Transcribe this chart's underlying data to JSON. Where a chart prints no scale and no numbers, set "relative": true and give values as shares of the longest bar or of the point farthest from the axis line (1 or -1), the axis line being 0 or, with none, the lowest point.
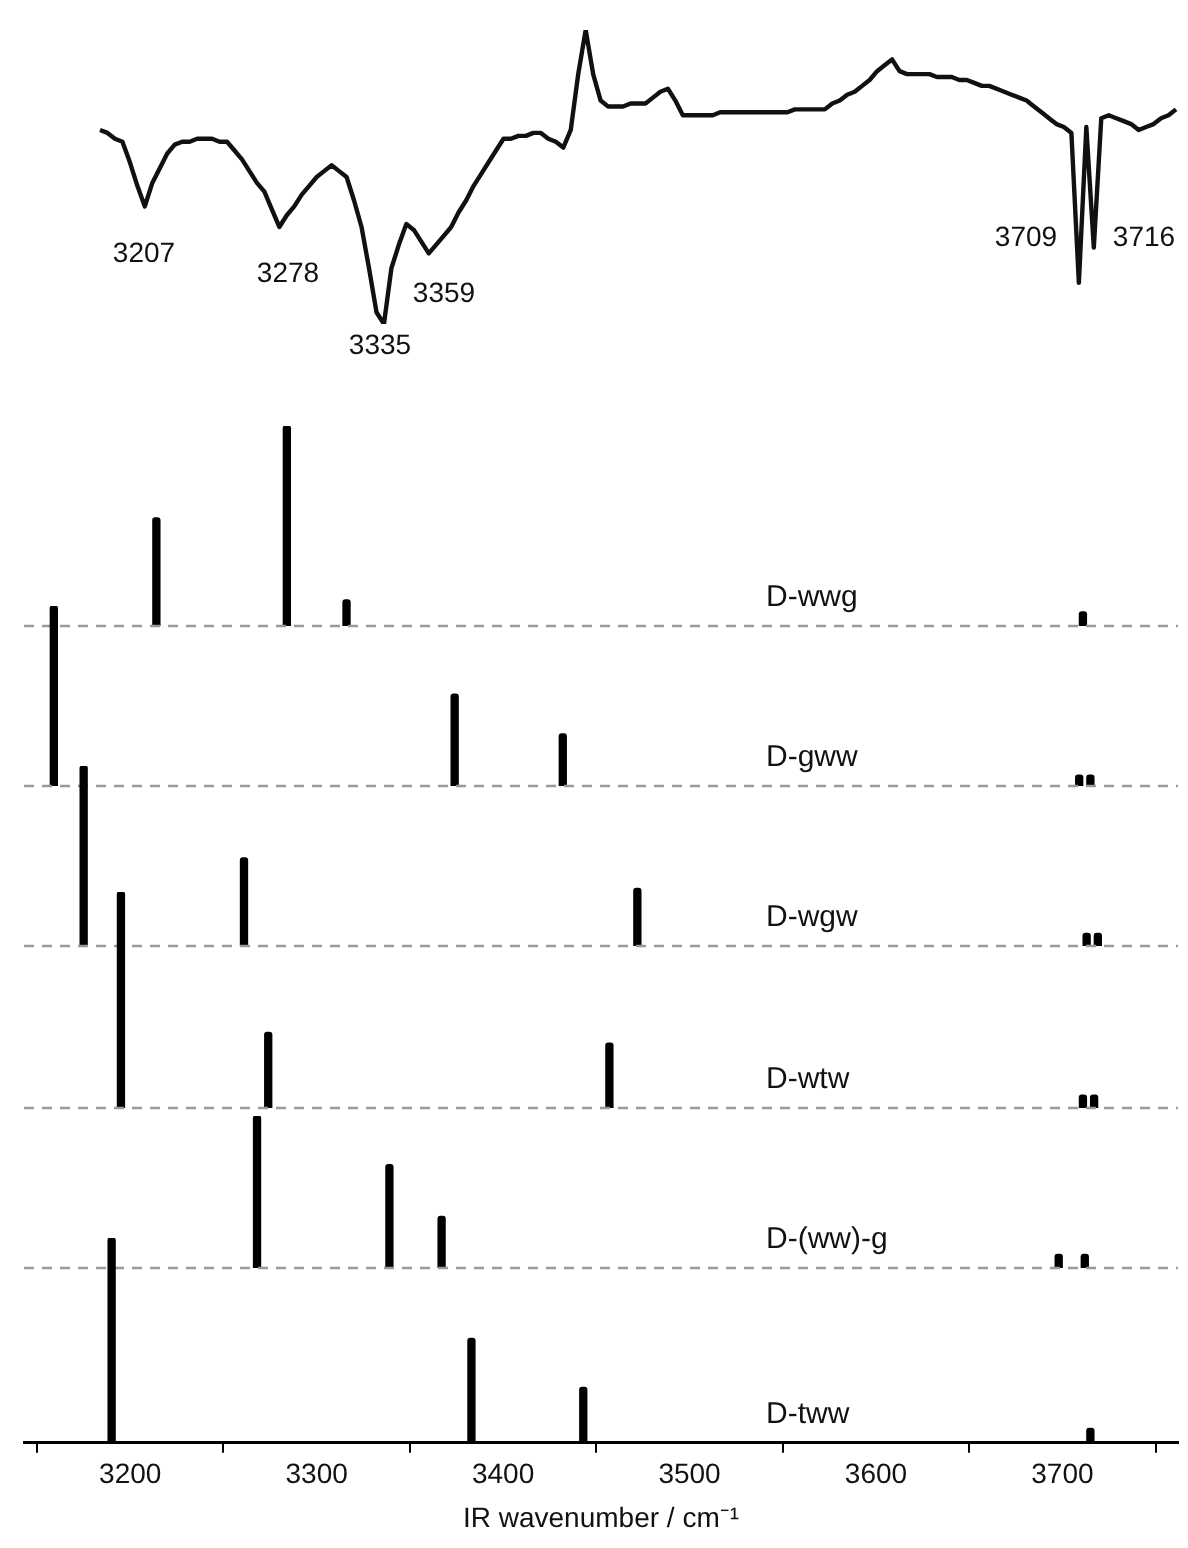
{
  "chart_data": [
    {
      "type": "line",
      "relative": true,
      "color": "#111111",
      "tick_labels": false,
      "categories": [
        null,
        null,
        null,
        null,
        null,
        null,
        null,
        null,
        null,
        null,
        null,
        null,
        null,
        null,
        null,
        null,
        null,
        null,
        null,
        null,
        null,
        null,
        null,
        null,
        null,
        null,
        null,
        null,
        null,
        null,
        null,
        null,
        null,
        null,
        null,
        null,
        null,
        null,
        null,
        null,
        null,
        null,
        null,
        null,
        null,
        null,
        null,
        null,
        null,
        null,
        null,
        null,
        null,
        null,
        null,
        null,
        null,
        null,
        null,
        null,
        null,
        null,
        null,
        null,
        null,
        null,
        null,
        null,
        null,
        null,
        null,
        null,
        null,
        null,
        null,
        null,
        null,
        null,
        null,
        null,
        null,
        null,
        null,
        null,
        null,
        null,
        null,
        null,
        null,
        null,
        null,
        null,
        null,
        null,
        null,
        null,
        null,
        null,
        null,
        null,
        null,
        null,
        null,
        null,
        null,
        null,
        null,
        null,
        null,
        null,
        null,
        null,
        null,
        null,
        null,
        null,
        null,
        null,
        null,
        null,
        null,
        null,
        null,
        null,
        null,
        null,
        null,
        null,
        null,
        null,
        null,
        null,
        null,
        null,
        null,
        null,
        null,
        null,
        null,
        null,
        null,
        null,
        null,
        null,
        null
      ],
      "values": [
        0.66,
        0.65,
        0.63,
        0.62,
        0.55,
        0.47,
        0.4,
        0.48,
        0.53,
        0.58,
        0.61,
        0.62,
        0.62,
        0.63,
        0.63,
        0.63,
        0.62,
        0.62,
        0.59,
        0.56,
        0.52,
        0.48,
        0.45,
        0.39,
        0.33,
        0.37,
        0.4,
        0.44,
        0.47,
        0.5,
        0.52,
        0.54,
        0.52,
        0.5,
        0.42,
        0.33,
        0.19,
        0.04,
        0,
        0.19,
        0.27,
        0.34,
        0.32,
        0.28,
        0.24,
        0.27,
        0.3,
        0.33,
        0.38,
        0.42,
        0.47,
        0.51,
        0.55,
        0.59,
        0.63,
        0.63,
        0.64,
        0.64,
        0.65,
        0.65,
        0.63,
        0.62,
        0.6,
        0.66,
        0.85,
        1,
        0.85,
        0.76,
        0.74,
        0.74,
        0.74,
        0.75,
        0.75,
        0.75,
        0.77,
        0.79,
        0.8,
        0.76,
        0.71,
        0.71,
        0.71,
        0.71,
        0.71,
        0.72,
        0.72,
        0.72,
        0.72,
        0.72,
        0.72,
        0.72,
        0.72,
        0.72,
        0.72,
        0.73,
        0.73,
        0.73,
        0.73,
        0.73,
        0.75,
        0.76,
        0.78,
        0.79,
        0.81,
        0.83,
        0.86,
        0.88,
        0.9,
        0.86,
        0.85,
        0.85,
        0.85,
        0.85,
        0.84,
        0.84,
        0.84,
        0.83,
        0.83,
        0.82,
        0.81,
        0.81,
        0.8,
        0.79,
        0.78,
        0.77,
        0.76,
        0.74,
        0.72,
        0.7,
        0.68,
        0.67,
        0.65,
        0.14,
        0.67,
        0.26,
        0.7,
        0.71,
        0.7,
        0.69,
        0.68,
        0.66,
        0.67,
        0.68,
        0.7,
        0.71,
        0.73
      ],
      "annotations": [
        "3207",
        "3278",
        "3335",
        "3359",
        "3709",
        "3716"
      ]
    },
    {
      "type": "bar",
      "title": "D-wwg",
      "relative": true,
      "color": "#000000",
      "xlim": [
        3143,
        3762
      ],
      "xticks": [
        3200,
        3300,
        3400,
        3500,
        3600,
        3700
      ],
      "tick_labels": false,
      "x": [
        3214,
        3284,
        3316,
        3711
      ],
      "values": [
        0.54,
        1,
        0.13,
        0.07
      ]
    },
    {
      "type": "bar",
      "title": "D-gww",
      "relative": true,
      "color": "#000000",
      "xlim": [
        3143,
        3762
      ],
      "xticks": [
        3200,
        3300,
        3400,
        3500,
        3600,
        3700
      ],
      "tick_labels": false,
      "x": [
        3159,
        3374,
        3432,
        3709,
        3715
      ],
      "values": [
        1,
        0.51,
        0.29,
        0.06,
        0.06
      ]
    },
    {
      "type": "bar",
      "title": "D-wgw",
      "relative": true,
      "color": "#000000",
      "xlim": [
        3143,
        3762
      ],
      "xticks": [
        3200,
        3300,
        3400,
        3500,
        3600,
        3700
      ],
      "tick_labels": false,
      "x": [
        3175,
        3261,
        3472,
        3713,
        3719
      ],
      "values": [
        1,
        0.49,
        0.32,
        0.07,
        0.07
      ]
    },
    {
      "type": "bar",
      "title": "D-wtw",
      "relative": true,
      "color": "#000000",
      "xlim": [
        3143,
        3762
      ],
      "xticks": [
        3200,
        3300,
        3400,
        3500,
        3600,
        3700
      ],
      "tick_labels": false,
      "x": [
        3195,
        3274,
        3457,
        3711,
        3717
      ],
      "values": [
        1,
        0.35,
        0.3,
        0.06,
        0.06
      ]
    },
    {
      "type": "bar",
      "title": "D-(ww)-g",
      "relative": true,
      "color": "#000000",
      "xlim": [
        3143,
        3762
      ],
      "xticks": [
        3200,
        3300,
        3400,
        3500,
        3600,
        3700
      ],
      "tick_labels": false,
      "x": [
        3268,
        3339,
        3367,
        3698,
        3712
      ],
      "values": [
        1,
        0.68,
        0.34,
        0.09,
        0.09
      ]
    },
    {
      "type": "bar",
      "title": "D-tww",
      "relative": true,
      "color": "#000000",
      "xlim": [
        3143,
        3762
      ],
      "xticks": [
        3200,
        3300,
        3400,
        3500,
        3600,
        3700
      ],
      "tick_labels": "x",
      "xlabel": "IR wavenumber / cm⁻¹",
      "x": [
        3190,
        3383,
        3443,
        3715
      ],
      "values": [
        1,
        0.51,
        0.27,
        0.07
      ]
    }
  ]
}
